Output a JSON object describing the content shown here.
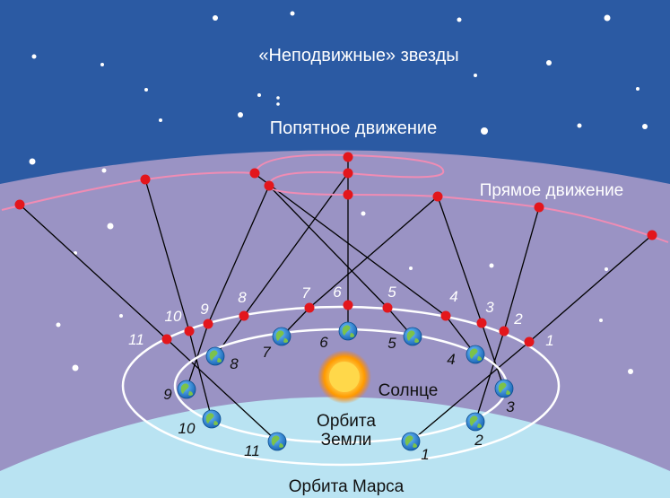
{
  "labels": {
    "fixed_stars": "«Неподвижные» звезды",
    "retrograde": "Попятное движение",
    "direct": "Прямое движение",
    "sun": "Солнце",
    "earth_orbit_line1": "Орбита",
    "earth_orbit_line2": "Земли",
    "mars_orbit": "Орбита Марса"
  },
  "earth_numbers": [
    "1",
    "2",
    "3",
    "4",
    "5",
    "6",
    "7",
    "8",
    "9",
    "10",
    "11"
  ],
  "mars_numbers": [
    "1",
    "2",
    "3",
    "4",
    "5",
    "6",
    "7",
    "8",
    "9",
    "10",
    "11"
  ],
  "colors": {
    "sky_top": "#2b5aa3",
    "band": "#9a93c4",
    "ground": "#b9e3f2",
    "sight_line": "#000000",
    "orbit": "#ffffff",
    "mars_dot": "#e3161c",
    "path_line": "#f08cb4",
    "sun": "#ffb000",
    "earth_ocean": "#1f78c8",
    "earth_land": "#7cc24a"
  }
}
